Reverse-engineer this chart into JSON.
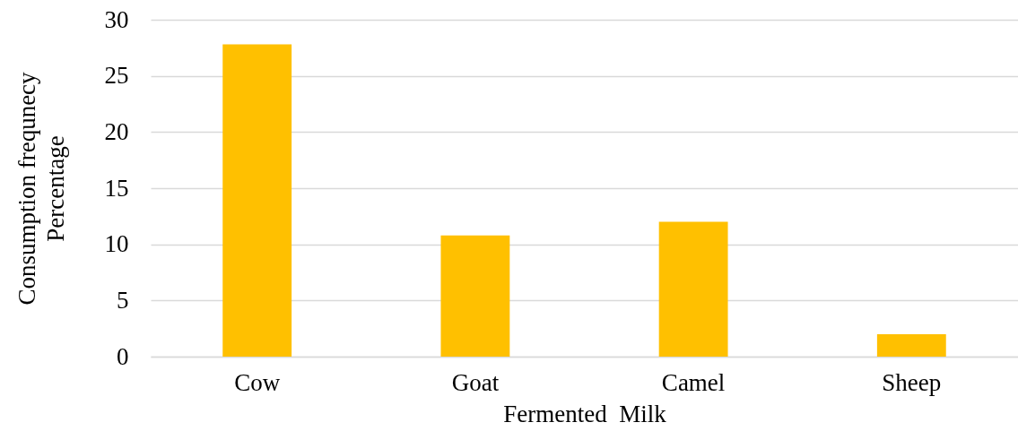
{
  "chart_data": {
    "type": "bar",
    "categories": [
      "Cow",
      "Goat",
      "Camel",
      "Sheep"
    ],
    "values": [
      27.8,
      10.8,
      12.0,
      2.0
    ],
    "color": "#ffc000",
    "xlabel": "Fermented  Milk",
    "ylabel": "Consumption frequnecy\nPercentage",
    "ylim": [
      0,
      30
    ],
    "yticks": [
      0,
      5,
      10,
      15,
      20,
      25,
      30
    ],
    "grid": "y"
  }
}
